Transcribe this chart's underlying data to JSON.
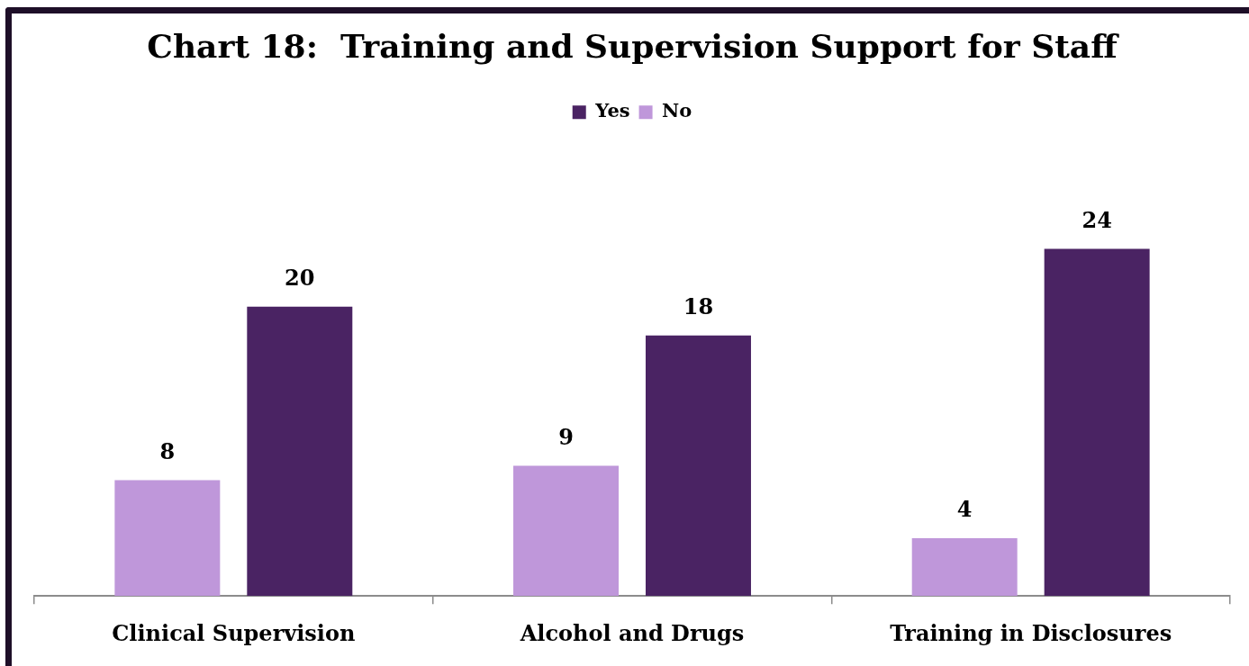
{
  "chart_data": {
    "type": "bar",
    "title": "Chart 18:  Training and Supervision Support for Staff",
    "categories": [
      "Clinical Supervision",
      "Alcohol and Drugs",
      "Training in Disclosures"
    ],
    "series": [
      {
        "name": "No",
        "color": "#bf97da",
        "values": [
          8,
          9,
          4
        ]
      },
      {
        "name": "Yes",
        "color": "#4a2363",
        "values": [
          20,
          18,
          24
        ]
      }
    ],
    "data_labels": true,
    "legend": "top"
  }
}
